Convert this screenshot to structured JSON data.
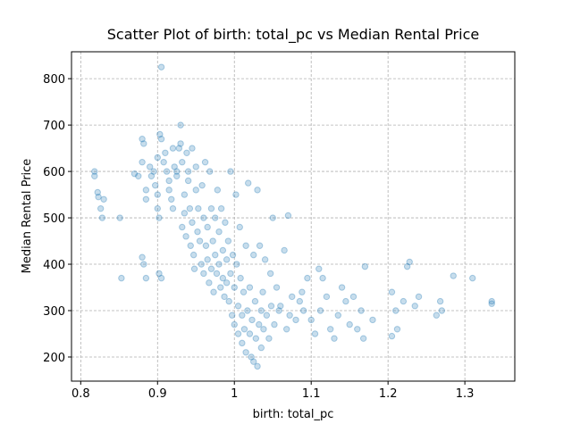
{
  "chart_data": {
    "type": "scatter",
    "title": "Scatter Plot of birth: total_pc vs Median Rental Price",
    "x_label": "birth: total_pc",
    "y_label": "Median Rental Price",
    "color": "#1f77b4",
    "grid": true,
    "xlim": [
      0.788,
      1.365
    ],
    "ylim": [
      148,
      858
    ],
    "xticks": [
      0.8,
      0.9,
      1.0,
      1.1,
      1.2,
      1.3
    ],
    "yticks": [
      200,
      300,
      400,
      500,
      600,
      700,
      800
    ],
    "x": [
      0.818,
      0.818,
      0.822,
      0.823,
      0.826,
      0.828,
      0.83,
      0.851,
      0.853,
      0.87,
      0.875,
      0.88,
      0.88,
      0.882,
      0.885,
      0.885,
      0.88,
      0.882,
      0.885,
      0.89,
      0.892,
      0.895,
      0.897,
      0.9,
      0.9,
      0.9,
      0.902,
      0.903,
      0.905,
      0.905,
      0.905,
      0.902,
      0.908,
      0.91,
      0.912,
      0.915,
      0.915,
      0.918,
      0.92,
      0.92,
      0.922,
      0.925,
      0.925,
      0.928,
      0.93,
      0.93,
      0.932,
      0.932,
      0.935,
      0.935,
      0.937,
      0.938,
      0.94,
      0.94,
      0.942,
      0.943,
      0.945,
      0.945,
      0.947,
      0.948,
      0.95,
      0.95,
      0.952,
      0.953,
      0.955,
      0.957,
      0.958,
      0.96,
      0.96,
      0.962,
      0.963,
      0.965,
      0.965,
      0.967,
      0.968,
      0.97,
      0.97,
      0.972,
      0.973,
      0.975,
      0.975,
      0.977,
      0.978,
      0.98,
      0.98,
      0.982,
      0.983,
      0.985,
      0.985,
      0.987,
      0.988,
      0.99,
      0.99,
      0.992,
      0.993,
      0.995,
      0.995,
      0.997,
      0.998,
      1.0,
      1.0,
      1.002,
      1.003,
      1.005,
      1.005,
      1.007,
      1.008,
      1.01,
      1.01,
      1.012,
      1.013,
      1.015,
      1.015,
      1.017,
      1.018,
      1.02,
      1.02,
      1.022,
      1.023,
      1.025,
      1.025,
      1.027,
      1.028,
      1.03,
      1.03,
      1.032,
      1.033,
      1.035,
      1.035,
      1.037,
      1.038,
      1.04,
      1.042,
      1.045,
      1.047,
      1.048,
      1.05,
      1.052,
      1.055,
      1.058,
      1.06,
      1.065,
      1.068,
      1.07,
      1.072,
      1.075,
      1.08,
      1.085,
      1.088,
      1.09,
      1.095,
      1.1,
      1.105,
      1.11,
      1.112,
      1.115,
      1.12,
      1.125,
      1.13,
      1.135,
      1.14,
      1.145,
      1.15,
      1.155,
      1.16,
      1.165,
      1.168,
      1.17,
      1.18,
      1.205,
      1.205,
      1.21,
      1.212,
      1.22,
      1.225,
      1.228,
      1.235,
      1.24,
      1.263,
      1.268,
      1.27,
      1.285,
      1.31,
      1.335,
      1.335
    ],
    "values": [
      600,
      590,
      555,
      545,
      520,
      500,
      540,
      500,
      370,
      595,
      590,
      620,
      670,
      660,
      560,
      540,
      415,
      400,
      370,
      610,
      590,
      600,
      570,
      630,
      550,
      520,
      500,
      680,
      825,
      670,
      370,
      380,
      620,
      640,
      600,
      580,
      560,
      540,
      650,
      520,
      610,
      600,
      590,
      650,
      700,
      660,
      620,
      480,
      550,
      510,
      460,
      640,
      600,
      580,
      520,
      440,
      650,
      490,
      420,
      390,
      560,
      610,
      470,
      520,
      450,
      400,
      570,
      500,
      380,
      620,
      440,
      480,
      410,
      360,
      600,
      520,
      390,
      450,
      340,
      500,
      420,
      380,
      560,
      470,
      400,
      350,
      520,
      430,
      370,
      330,
      490,
      410,
      360,
      450,
      320,
      600,
      380,
      290,
      420,
      350,
      270,
      550,
      400,
      310,
      250,
      480,
      370,
      230,
      290,
      340,
      260,
      440,
      210,
      300,
      575,
      250,
      350,
      200,
      280,
      420,
      190,
      320,
      240,
      180,
      560,
      270,
      440,
      300,
      220,
      340,
      260,
      410,
      290,
      240,
      380,
      310,
      500,
      270,
      350,
      300,
      310,
      430,
      260,
      505,
      290,
      330,
      280,
      320,
      340,
      300,
      370,
      280,
      250,
      390,
      300,
      370,
      330,
      260,
      240,
      290,
      350,
      320,
      270,
      330,
      260,
      300,
      240,
      395,
      280,
      340,
      245,
      300,
      260,
      320,
      395,
      405,
      310,
      330,
      290,
      320,
      300,
      375,
      370,
      320,
      315
    ]
  }
}
